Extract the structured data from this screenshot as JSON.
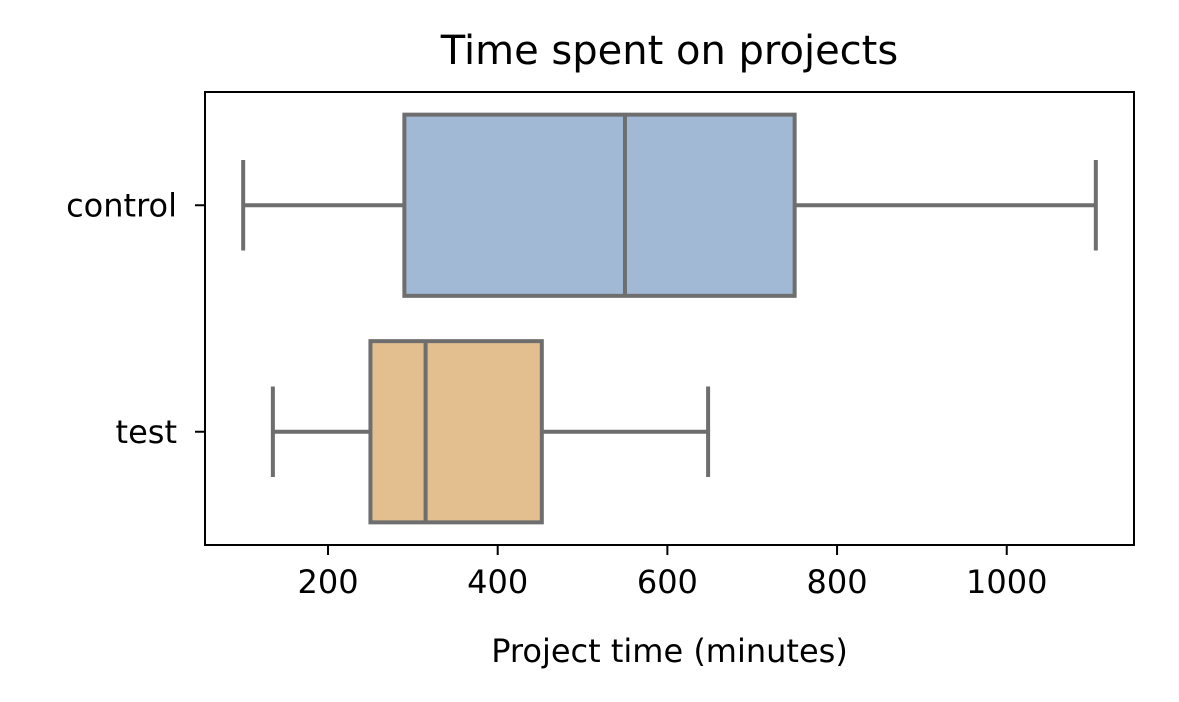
{
  "chart_data": {
    "type": "box",
    "orientation": "horizontal",
    "title": "Time spent on projects",
    "xlabel": "Project time (minutes)",
    "ylabel": "",
    "xlim": [
      55,
      1150
    ],
    "xticks": [
      200,
      400,
      600,
      800,
      1000
    ],
    "categories": [
      "control",
      "test"
    ],
    "boxes": [
      {
        "category": "control",
        "whisker_low": 100,
        "q1": 290,
        "median": 550,
        "q3": 750,
        "whisker_high": 1105,
        "color": "#a1b9d4"
      },
      {
        "category": "test",
        "whisker_low": 135,
        "q1": 250,
        "median": 315,
        "q3": 452,
        "whisker_high": 648,
        "color": "#e3bf8f"
      }
    ],
    "line_color": "#6e6e6e",
    "grid": false,
    "legend": "none"
  }
}
